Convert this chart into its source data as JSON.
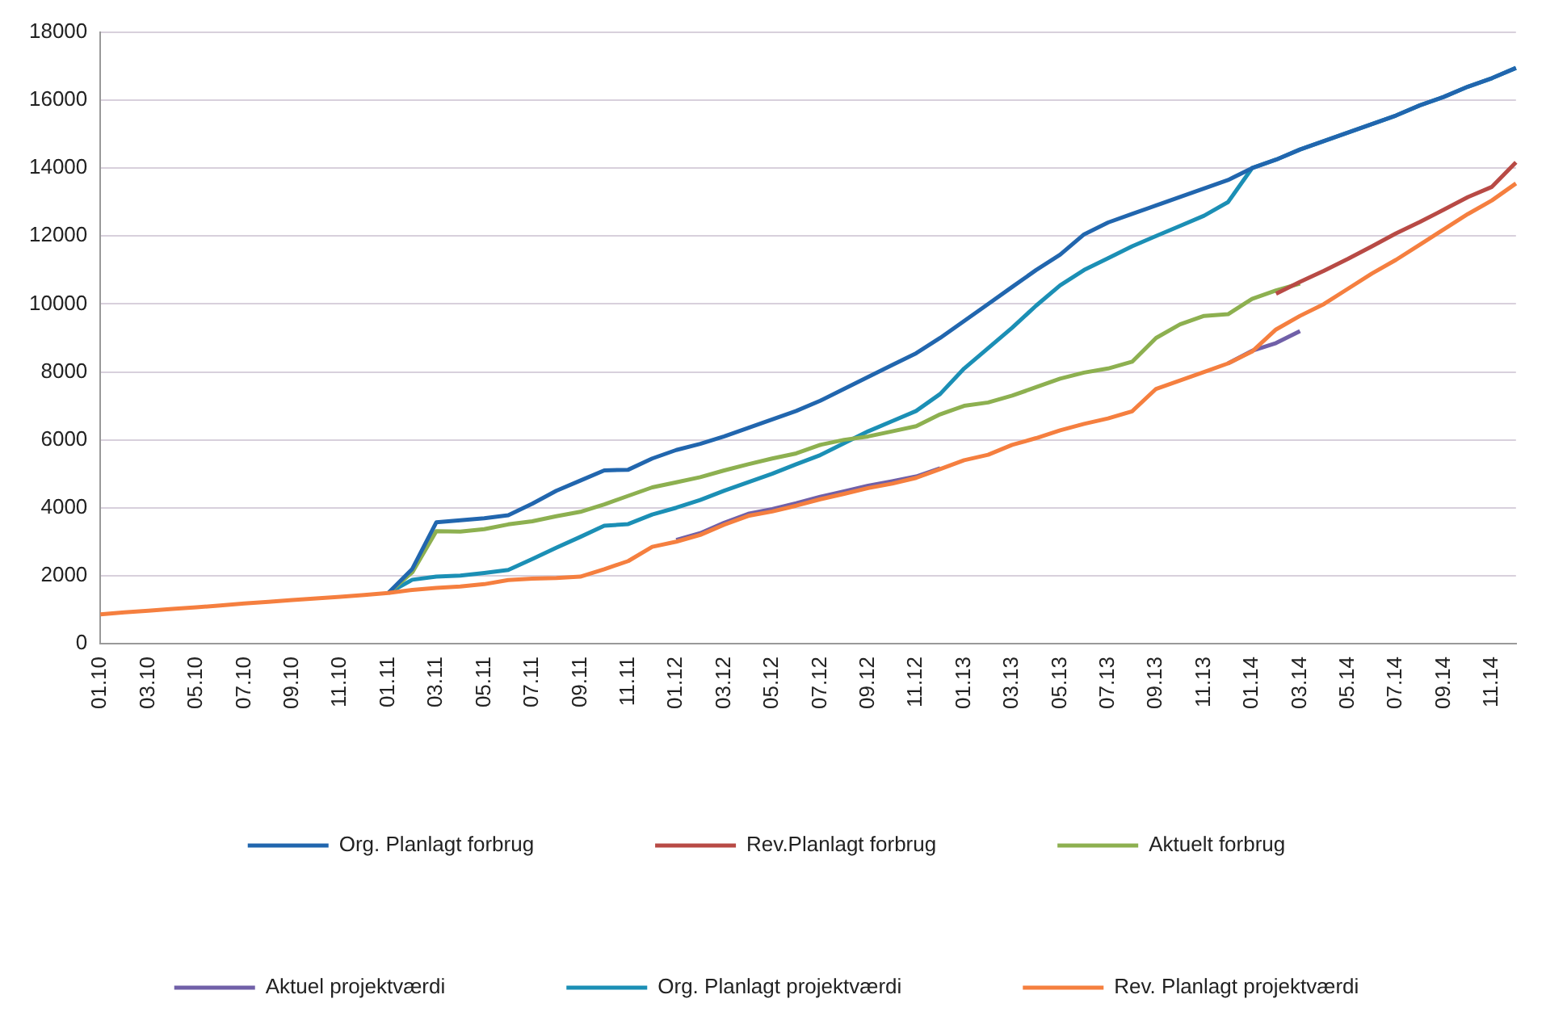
{
  "chart_data": {
    "type": "line",
    "categories": [
      "01.10",
      null,
      "03.10",
      null,
      "05.10",
      null,
      "07.10",
      null,
      "09.10",
      null,
      "11.10",
      null,
      "01.11",
      null,
      "03.11",
      null,
      "05.11",
      null,
      "07.11",
      null,
      "09.11",
      null,
      "11.11",
      null,
      "01.12",
      null,
      "03.12",
      null,
      "05.12",
      null,
      "07.12",
      null,
      "09.12",
      null,
      "11.12",
      null,
      "01.13",
      null,
      "03.13",
      null,
      "05.13",
      null,
      "07.13",
      null,
      "09.13",
      null,
      "11.13",
      null,
      "01.14",
      null,
      "03.14",
      null,
      "05.14",
      null,
      "07.14",
      null,
      "09.14",
      null,
      "11.14",
      null
    ],
    "ylim": [
      0,
      18000
    ],
    "yticks": [
      0,
      2000,
      4000,
      6000,
      8000,
      10000,
      12000,
      14000,
      16000,
      18000
    ],
    "grid": "y",
    "legend": "bottom",
    "marker": "none",
    "line_style": "solid",
    "series": [
      {
        "name": "Org. Planlagt forbrug",
        "color": "#2166ae",
        "values": [
          null,
          null,
          null,
          null,
          null,
          null,
          null,
          null,
          null,
          null,
          null,
          null,
          1490,
          2200,
          3570,
          3630,
          3690,
          3780,
          4120,
          4500,
          4800,
          5100,
          5120,
          5450,
          5700,
          5880,
          6100,
          6350,
          6600,
          6850,
          7150,
          7500,
          7850,
          8200,
          8550,
          9000,
          9500,
          10000,
          10500,
          11000,
          11450,
          12050,
          12400,
          12650,
          12900,
          13150,
          13400,
          13650,
          14000,
          14250,
          14550,
          14800,
          15050,
          15300,
          15550,
          15850,
          16100,
          16400,
          16650,
          16950
        ]
      },
      {
        "name": "Rev.Planlagt forbrug",
        "color": "#b84a45",
        "values": [
          null,
          null,
          null,
          null,
          null,
          null,
          null,
          null,
          null,
          null,
          null,
          null,
          null,
          null,
          null,
          null,
          null,
          null,
          null,
          null,
          null,
          null,
          null,
          null,
          null,
          null,
          null,
          null,
          null,
          null,
          null,
          null,
          null,
          null,
          null,
          null,
          null,
          null,
          null,
          null,
          null,
          null,
          null,
          null,
          null,
          null,
          null,
          null,
          null,
          10300,
          10650,
          10980,
          11330,
          11700,
          12080,
          12420,
          12780,
          13150,
          13450,
          14170
        ]
      },
      {
        "name": "Aktuelt forbrug",
        "color": "#8db050",
        "values": [
          null,
          null,
          null,
          null,
          null,
          null,
          null,
          null,
          null,
          null,
          null,
          null,
          1490,
          2100,
          3310,
          3300,
          3370,
          3510,
          3600,
          3750,
          3880,
          4100,
          4350,
          4600,
          4750,
          4900,
          5100,
          5280,
          5450,
          5600,
          5850,
          6000,
          6100,
          6250,
          6400,
          6750,
          7000,
          7100,
          7300,
          7550,
          7800,
          7980,
          8100,
          8300,
          9000,
          9400,
          9650,
          9700,
          10150,
          10400,
          10600,
          null,
          null,
          null,
          null,
          null,
          null,
          null,
          null,
          null
        ]
      },
      {
        "name": "Aktuel projektværdi",
        "color": "#7060a8",
        "values": [
          null,
          null,
          null,
          null,
          null,
          null,
          null,
          null,
          null,
          null,
          null,
          null,
          null,
          null,
          null,
          null,
          null,
          null,
          null,
          null,
          null,
          null,
          null,
          null,
          3050,
          3250,
          3560,
          3820,
          3960,
          4130,
          4320,
          4480,
          4650,
          4780,
          4920,
          5160,
          null,
          null,
          null,
          null,
          null,
          null,
          null,
          null,
          null,
          null,
          null,
          8250,
          8620,
          8850,
          9200,
          null,
          null,
          null,
          null,
          null,
          null,
          null,
          null,
          null
        ]
      },
      {
        "name": "Org. Planlagt projektværdi",
        "color": "#1b8fb5",
        "values": [
          null,
          null,
          null,
          null,
          null,
          null,
          null,
          null,
          null,
          null,
          null,
          null,
          1490,
          1880,
          1970,
          2000,
          2080,
          2170,
          2490,
          2820,
          3140,
          3470,
          3520,
          3800,
          4000,
          4230,
          4500,
          4750,
          5000,
          5280,
          5550,
          5900,
          6250,
          6550,
          6850,
          7350,
          8100,
          8700,
          9300,
          9950,
          10550,
          11000,
          11350,
          11700,
          12000,
          12300,
          12600,
          13000,
          14000,
          14250,
          14550,
          14800,
          15050,
          15300,
          15550,
          15850,
          16100,
          16400,
          16650,
          16950
        ]
      },
      {
        "name": "Rev. Planlagt projektværdi",
        "color": "#f57f3f",
        "values": [
          860,
          920,
          970,
          1020,
          1070,
          1120,
          1180,
          1230,
          1280,
          1330,
          1380,
          1430,
          1490,
          1580,
          1640,
          1680,
          1750,
          1870,
          1910,
          1930,
          1970,
          2190,
          2430,
          2850,
          3000,
          3200,
          3500,
          3760,
          3890,
          4060,
          4250,
          4410,
          4580,
          4710,
          4880,
          5140,
          5400,
          5560,
          5850,
          6050,
          6280,
          6470,
          6630,
          6840,
          7500,
          7750,
          8000,
          8250,
          8600,
          9250,
          9650,
          10000,
          10450,
          10900,
          11300,
          11750,
          12200,
          12650,
          13050,
          13550
        ]
      }
    ]
  }
}
